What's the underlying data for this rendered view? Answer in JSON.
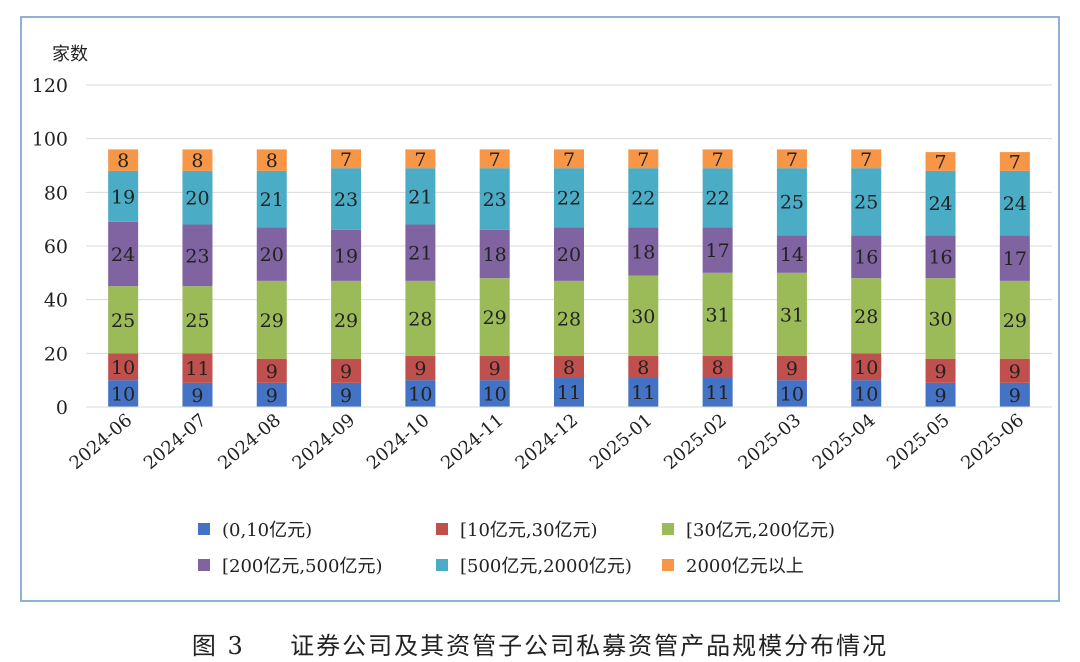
{
  "chart_data": {
    "type": "bar",
    "stacked": true,
    "ylabel": "家数",
    "ylim": [
      0,
      120
    ],
    "yticks": [
      0,
      20,
      40,
      60,
      80,
      100,
      120
    ],
    "grid": true,
    "legend_position": "bottom",
    "categories": [
      "2024-06",
      "2024-07",
      "2024-08",
      "2024-09",
      "2024-10",
      "2024-11",
      "2024-12",
      "2025-01",
      "2025-02",
      "2025-03",
      "2025-04",
      "2025-05",
      "2025-06"
    ],
    "series": [
      {
        "name": "(0,10亿元)",
        "color": "#4472c4",
        "values": [
          10,
          9,
          9,
          9,
          10,
          10,
          11,
          11,
          11,
          10,
          10,
          9,
          9
        ]
      },
      {
        "name": "[10亿元,30亿元)",
        "color": "#c0504d",
        "values": [
          10,
          11,
          9,
          9,
          9,
          9,
          8,
          8,
          8,
          9,
          10,
          9,
          9
        ]
      },
      {
        "name": "[30亿元,200亿元)",
        "color": "#9bbb59",
        "values": [
          25,
          25,
          29,
          29,
          28,
          29,
          28,
          30,
          31,
          31,
          28,
          30,
          29
        ]
      },
      {
        "name": "[200亿元,500亿元)",
        "color": "#8064a2",
        "values": [
          24,
          23,
          20,
          19,
          21,
          18,
          20,
          18,
          17,
          14,
          16,
          16,
          17
        ]
      },
      {
        "name": "[500亿元,2000亿元)",
        "color": "#4bacc6",
        "values": [
          19,
          20,
          21,
          23,
          21,
          23,
          22,
          22,
          22,
          25,
          25,
          24,
          24
        ]
      },
      {
        "name": "2000亿元以上",
        "color": "#f79646",
        "values": [
          8,
          8,
          8,
          7,
          7,
          7,
          7,
          7,
          7,
          7,
          7,
          7,
          7
        ]
      }
    ]
  },
  "caption": {
    "label": "图 3",
    "title": "证券公司及其资管子公司私募资管产品规模分布情况"
  }
}
